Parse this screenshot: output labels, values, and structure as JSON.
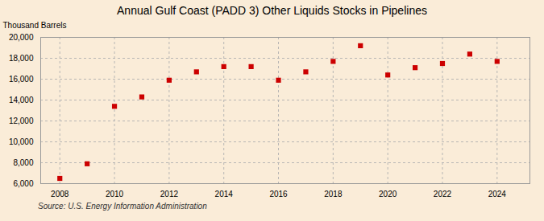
{
  "chart_data": {
    "type": "scatter",
    "title": "Annual Gulf Coast (PADD 3) Other Liquids Stocks in Pipelines",
    "ylabel": "Thousand Barrels",
    "annotation": "Source: U.S. Energy Information Administration",
    "x": [
      2008,
      2009,
      2010,
      2011,
      2012,
      2013,
      2014,
      2015,
      2016,
      2017,
      2018,
      2019,
      2020,
      2021,
      2022,
      2023,
      2024
    ],
    "values": [
      6500,
      7900,
      13400,
      14300,
      15900,
      16700,
      17200,
      17200,
      15900,
      16700,
      17700,
      19200,
      16400,
      17100,
      17500,
      18400,
      17700
    ],
    "color": "#cc0000",
    "marker": "square",
    "xlim": [
      2007.3,
      2025.2
    ],
    "xticks": [
      2008,
      2010,
      2012,
      2014,
      2016,
      2018,
      2020,
      2022,
      2024
    ],
    "ylim": [
      6000,
      20000
    ],
    "yticks": [
      {
        "value": 6000,
        "label": "6,000"
      },
      {
        "value": 8000,
        "label": "8,000"
      },
      {
        "value": 10000,
        "label": "10,000"
      },
      {
        "value": 12000,
        "label": "12,000"
      },
      {
        "value": 14000,
        "label": "14,000"
      },
      {
        "value": 16000,
        "label": "16,000"
      },
      {
        "value": 18000,
        "label": "18,000"
      },
      {
        "value": 20000,
        "label": "20,000"
      }
    ],
    "grid": true
  }
}
